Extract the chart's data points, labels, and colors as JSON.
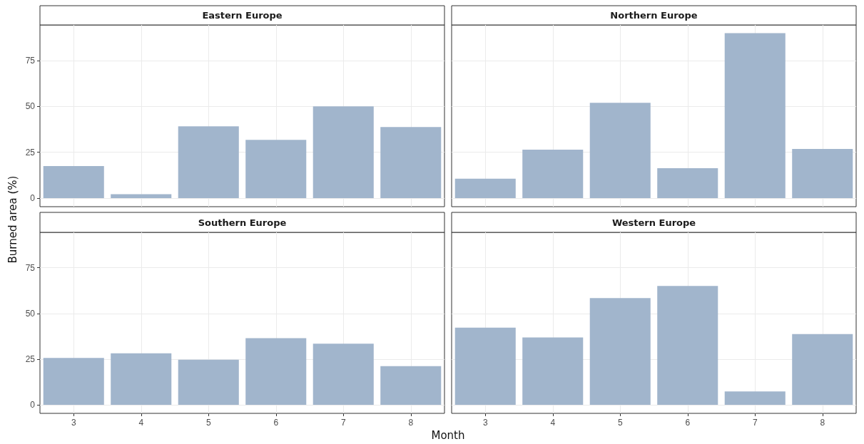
{
  "chart_data": [
    {
      "type": "bar",
      "title": "Eastern Europe",
      "categories": [
        "3",
        "4",
        "5",
        "6",
        "7",
        "8"
      ],
      "values": [
        17.5,
        2.1,
        39.1,
        31.7,
        50.0,
        38.7
      ],
      "color": "#a1b5cc",
      "ylim": [
        -4.7,
        94.4
      ],
      "yticks": [
        0,
        25,
        50,
        75
      ],
      "grid": true,
      "tick_labels": "y",
      "xlabel": "Month",
      "ylabel": "Burned area (%)"
    },
    {
      "type": "bar",
      "title": "Northern Europe",
      "categories": [
        "3",
        "4",
        "5",
        "6",
        "7",
        "8"
      ],
      "values": [
        10.6,
        26.4,
        51.9,
        16.3,
        89.9,
        26.8
      ],
      "color": "#a1b5cc",
      "ylim": [
        -4.7,
        94.4
      ],
      "yticks": [
        0,
        25,
        50,
        75
      ],
      "grid": true,
      "tick_labels": false
    },
    {
      "type": "bar",
      "title": "Southern Europe",
      "categories": [
        "3",
        "4",
        "5",
        "6",
        "7",
        "8"
      ],
      "values": [
        25.6,
        28.2,
        24.7,
        36.5,
        33.4,
        21.1
      ],
      "color": "#a1b5cc",
      "ylim": [
        -4.7,
        94.4
      ],
      "yticks": [
        0,
        25,
        50,
        75
      ],
      "grid": true
    },
    {
      "type": "bar",
      "title": "Western Europe",
      "categories": [
        "3",
        "4",
        "5",
        "6",
        "7",
        "8"
      ],
      "values": [
        42.2,
        36.9,
        58.4,
        65.0,
        7.3,
        38.7
      ],
      "color": "#a1b5cc",
      "ylim": [
        -4.7,
        94.4
      ],
      "yticks": [
        0,
        25,
        50,
        75
      ],
      "grid": true,
      "tick_labels": "x"
    }
  ]
}
